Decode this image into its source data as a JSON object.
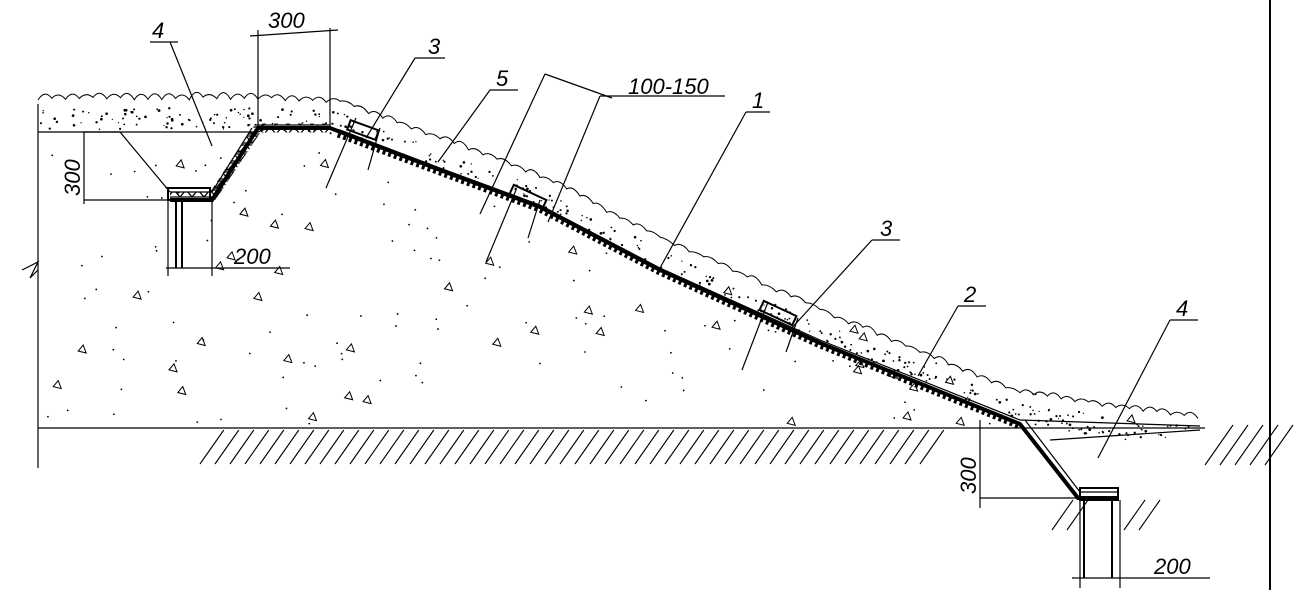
{
  "dimensions": {
    "top_width": "300",
    "layer_thickness": "100-150",
    "left_trench_depth": "300",
    "left_trench_width": "200",
    "right_trench_depth": "300",
    "right_trench_width": "200"
  },
  "callouts": {
    "c1": "1",
    "c2": "2",
    "c3a": "3",
    "c3b": "3",
    "c4a": "4",
    "c4b": "4",
    "c5": "5"
  }
}
